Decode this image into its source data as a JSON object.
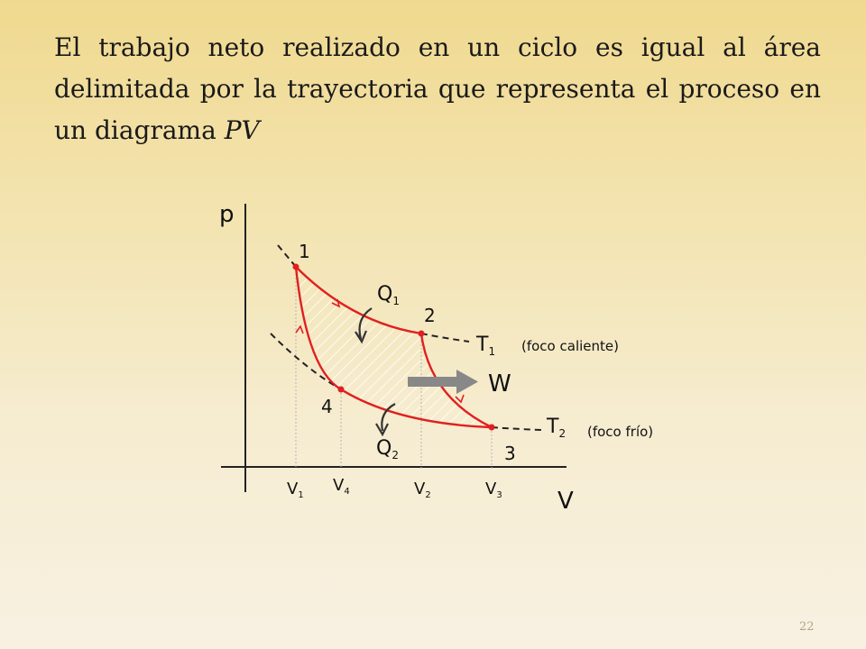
{
  "slide": {
    "text": {
      "main": "El trabajo neto realizado en un ciclo es igual al área delimitada por la trayectoria que representa el proceso en un diagrama",
      "variable": "PV"
    },
    "page_number": "22"
  },
  "diagram": {
    "axis_labels": {
      "y": "p",
      "x": "V"
    },
    "states": [
      "1",
      "2",
      "3",
      "4"
    ],
    "volumes": [
      {
        "letter": "V",
        "sub": "1"
      },
      {
        "letter": "V",
        "sub": "4"
      },
      {
        "letter": "V",
        "sub": "2"
      },
      {
        "letter": "V",
        "sub": "3"
      }
    ],
    "heat": {
      "q1": {
        "letter": "Q",
        "sub": "1"
      },
      "q2": {
        "letter": "Q",
        "sub": "2"
      }
    },
    "isotherms": {
      "hot": {
        "letter": "T",
        "sub": "1",
        "note": "(foco caliente)"
      },
      "cold": {
        "letter": "T",
        "sub": "2",
        "note": "(foco frío)"
      }
    },
    "work_label": "W",
    "colors": {
      "cycle": "#e02020",
      "axes": "#222222",
      "isotherm": "#222222",
      "hatch": "#ffffff",
      "guide": "#b5b5b5",
      "work_arrow": "#888888",
      "heat_arrow": "#333333"
    }
  }
}
